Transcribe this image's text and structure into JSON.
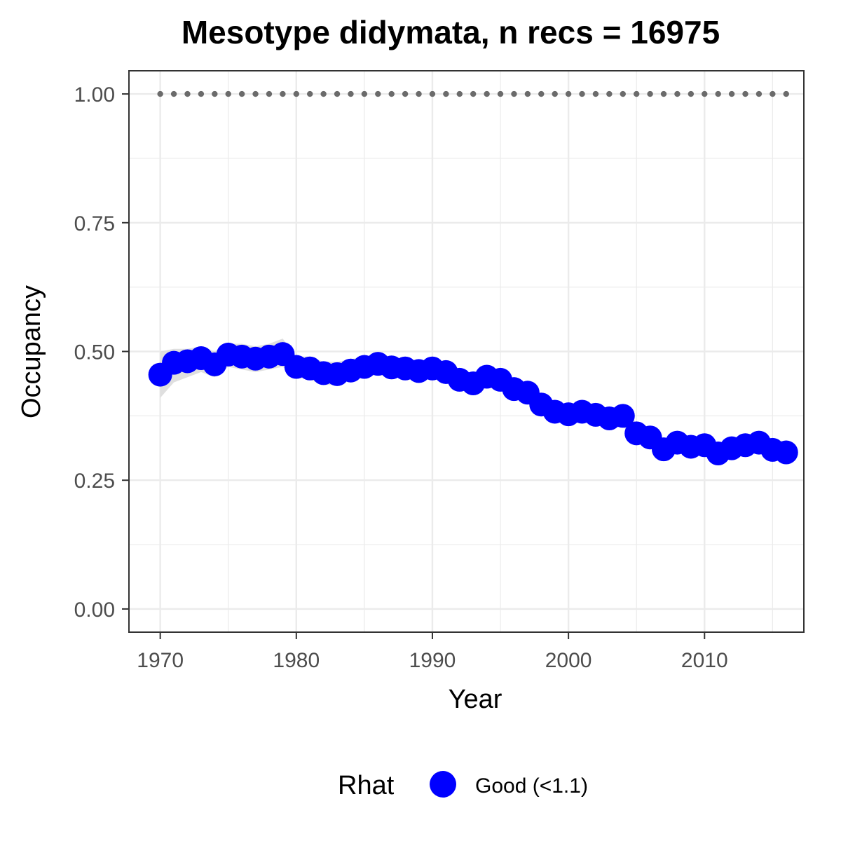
{
  "chart_data": {
    "type": "line",
    "title": "Mesotype didymata, n recs = 16975",
    "xlabel": "Year",
    "ylabel": "Occupancy",
    "xlim": [
      1967.7,
      2017.3
    ],
    "ylim": [
      -0.045,
      1.045
    ],
    "x_ticks": [
      1970,
      1980,
      1990,
      2000,
      2010
    ],
    "x_tick_labels": [
      "1970",
      "1980",
      "1990",
      "2000",
      "2010"
    ],
    "y_ticks": [
      0,
      0.25,
      0.5,
      0.75,
      1.0
    ],
    "y_tick_labels": [
      "0.00",
      "0.25",
      "0.50",
      "0.75",
      "1.00"
    ],
    "grid": true,
    "legend": {
      "title": "Rhat",
      "position": "bottom",
      "entries": [
        {
          "label": "Good (<1.1)",
          "color": "#0000ff"
        }
      ]
    },
    "colors": {
      "points": "#0000ff",
      "ribbon": "#d9d9d9",
      "reference": "#6b6b6b",
      "grid": "#ebebeb",
      "axis": "#333333"
    },
    "series": [
      {
        "x": [
          1970,
          1971,
          1972,
          1973,
          1974,
          1975,
          1976,
          1977,
          1978,
          1979,
          1980,
          1981,
          1982,
          1983,
          1984,
          1985,
          1986,
          1987,
          1988,
          1989,
          1990,
          1991,
          1992,
          1993,
          1994,
          1995,
          1996,
          1997,
          1998,
          1999,
          2000,
          2001,
          2002,
          2003,
          2004,
          2005,
          2006,
          2007,
          2008,
          2009,
          2010,
          2011,
          2012,
          2013,
          2014,
          2015,
          2016
        ],
        "values": [
          0.455,
          0.478,
          0.481,
          0.487,
          0.475,
          0.494,
          0.49,
          0.486,
          0.49,
          0.495,
          0.47,
          0.467,
          0.458,
          0.456,
          0.463,
          0.47,
          0.476,
          0.469,
          0.467,
          0.462,
          0.467,
          0.46,
          0.445,
          0.438,
          0.451,
          0.445,
          0.427,
          0.42,
          0.397,
          0.383,
          0.378,
          0.383,
          0.377,
          0.37,
          0.375,
          0.341,
          0.333,
          0.31,
          0.323,
          0.315,
          0.318,
          0.302,
          0.312,
          0.318,
          0.323,
          0.309,
          0.304
        ],
        "lower": [
          0.41,
          0.44,
          0.45,
          0.46,
          0.45,
          0.47,
          0.465,
          0.46,
          0.465,
          0.47,
          0.45,
          0.445,
          0.435,
          0.435,
          0.445,
          0.45,
          0.455,
          0.45,
          0.45,
          0.445,
          0.45,
          0.44,
          0.425,
          0.42,
          0.43,
          0.425,
          0.41,
          0.4,
          0.38,
          0.365,
          0.36,
          0.365,
          0.36,
          0.35,
          0.355,
          0.325,
          0.315,
          0.295,
          0.305,
          0.3,
          0.3,
          0.285,
          0.295,
          0.3,
          0.305,
          0.29,
          0.285
        ],
        "upper": [
          0.5,
          0.505,
          0.505,
          0.51,
          0.5,
          0.515,
          0.515,
          0.51,
          0.515,
          0.525,
          0.49,
          0.49,
          0.48,
          0.48,
          0.485,
          0.49,
          0.495,
          0.49,
          0.485,
          0.48,
          0.485,
          0.48,
          0.465,
          0.455,
          0.47,
          0.465,
          0.445,
          0.44,
          0.415,
          0.4,
          0.395,
          0.4,
          0.395,
          0.39,
          0.395,
          0.36,
          0.35,
          0.325,
          0.34,
          0.33,
          0.335,
          0.32,
          0.33,
          0.335,
          0.34,
          0.33,
          0.325
        ]
      },
      {
        "x": [
          1970,
          1971,
          1972,
          1973,
          1974,
          1975,
          1976,
          1977,
          1978,
          1979,
          1980,
          1981,
          1982,
          1983,
          1984,
          1985,
          1986,
          1987,
          1988,
          1989,
          1990,
          1991,
          1992,
          1993,
          1994,
          1995,
          1996,
          1997,
          1998,
          1999,
          2000,
          2001,
          2002,
          2003,
          2004,
          2005,
          2006,
          2007,
          2008,
          2009,
          2010,
          2011,
          2012,
          2013,
          2014,
          2015,
          2016
        ],
        "values": [
          1,
          1,
          1,
          1,
          1,
          1,
          1,
          1,
          1,
          1,
          1,
          1,
          1,
          1,
          1,
          1,
          1,
          1,
          1,
          1,
          1,
          1,
          1,
          1,
          1,
          1,
          1,
          1,
          1,
          1,
          1,
          1,
          1,
          1,
          1,
          1,
          1,
          1,
          1,
          1,
          1,
          1,
          1,
          1,
          1,
          1,
          1
        ]
      }
    ]
  }
}
